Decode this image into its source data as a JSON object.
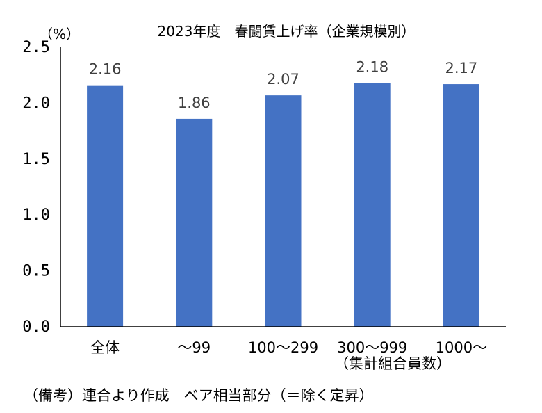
{
  "chart_data": {
    "type": "bar",
    "title": "2023年度　春闘賃上げ率（企業規模別）",
    "unit_label": "（%）",
    "categories": [
      "全体",
      "〜99",
      "100〜299",
      "300〜999",
      "1000〜"
    ],
    "values": [
      2.16,
      1.86,
      2.07,
      2.18,
      2.17
    ],
    "data_labels": [
      "2.16",
      "1.86",
      "2.07",
      "2.18",
      "2.17"
    ],
    "y_ticks": [
      "0.0",
      "0.5",
      "1.0",
      "1.5",
      "2.0",
      "2.5"
    ],
    "ylim": [
      0,
      2.5
    ],
    "x_group_label": "（集計組合員数）",
    "bar_color": "#4472C4",
    "grid": false,
    "legend": "none"
  },
  "footnote": "（備考）連合より作成　ベア相当部分（＝除く定昇）"
}
